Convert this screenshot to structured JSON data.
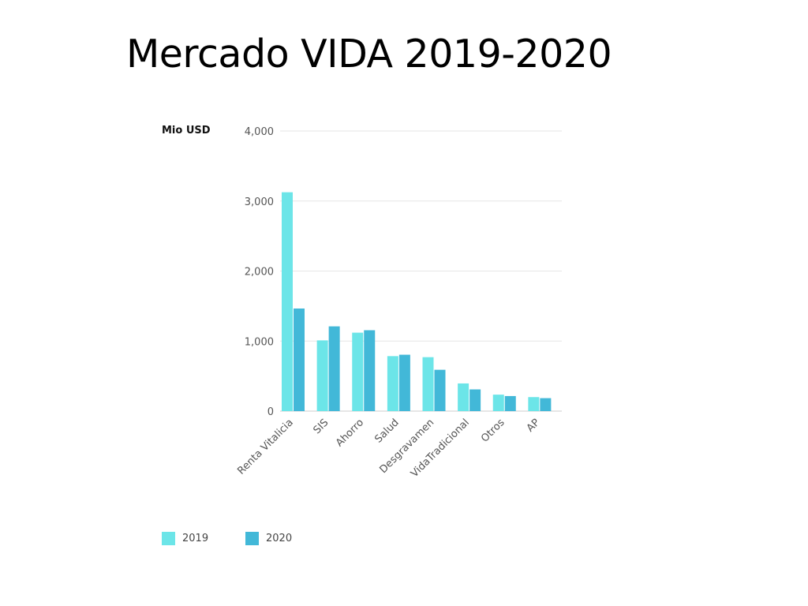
{
  "chart_data": {
    "type": "bar",
    "title": "Mercado VIDA 2019-2020",
    "ylabel": "Mio USD",
    "xlabel": "",
    "ylim": [
      0,
      4000
    ],
    "yticks": [
      0,
      1000,
      2000,
      3000,
      4000
    ],
    "ytick_labels": [
      "0",
      "1,000",
      "2,000",
      "3,000",
      "4,000"
    ],
    "grid": true,
    "legend_position": "bottom-left",
    "categories": [
      "Renta Vitalicia",
      "SIS",
      "Ahorro",
      "Salud",
      "Desgravamen",
      "VidaTradicional",
      "Otros",
      "AP"
    ],
    "series": [
      {
        "name": "2019",
        "color": "#6ce5e8",
        "values": [
          3125,
          1010,
          1120,
          785,
          770,
          395,
          235,
          200
        ]
      },
      {
        "name": "2020",
        "color": "#42b8d8",
        "values": [
          1465,
          1210,
          1155,
          805,
          590,
          310,
          215,
          185
        ]
      }
    ]
  }
}
